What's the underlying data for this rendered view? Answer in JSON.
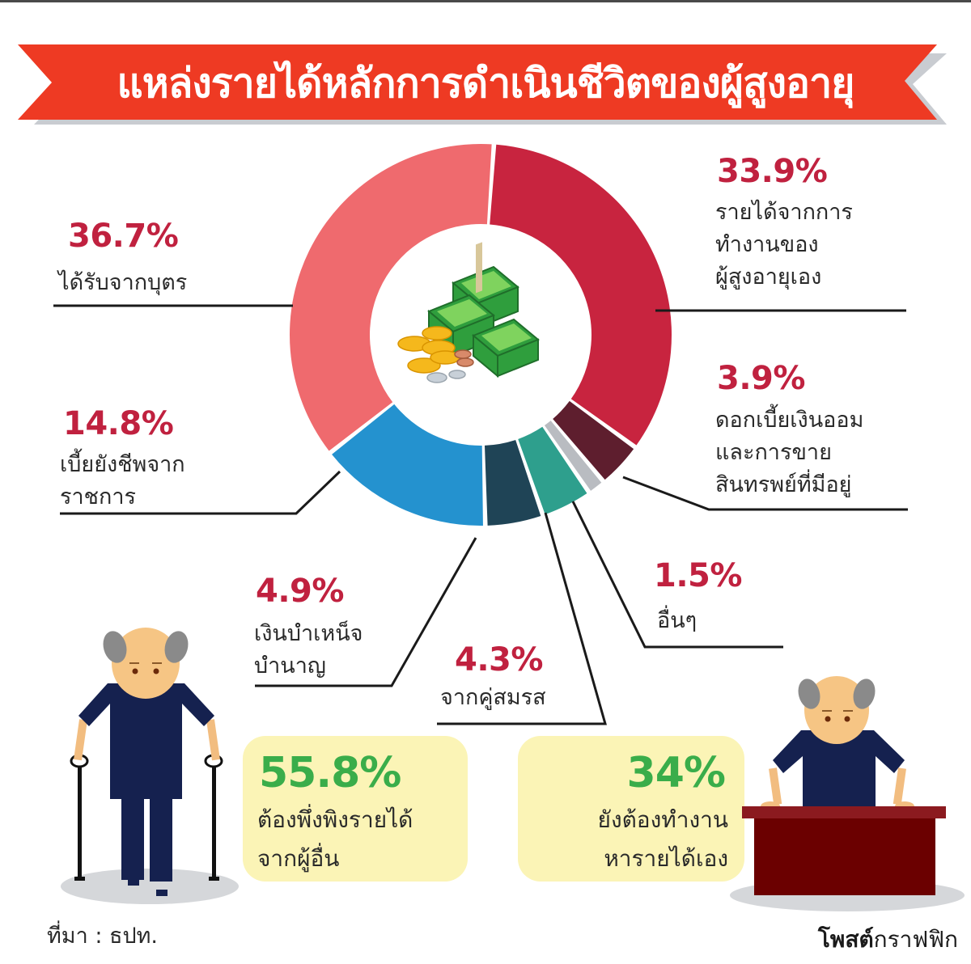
{
  "header": {
    "title": "แหล่งรายได้หลักการดำเนินชีวิตของผู้สูงอายุ"
  },
  "colors": {
    "banner_red": "#ee3a23",
    "banner_shadow": "#c9ccd1",
    "pct_red": "#c0213f",
    "callout_green": "#3aad4a",
    "callout_bg": "#fbf4b6",
    "shirt_navy": "#15214f",
    "desk_maroon": "#6b0000"
  },
  "chart_data": {
    "type": "pie",
    "variant": "donut",
    "title": "แหล่งรายได้หลักการดำเนินชีวิตของผู้สูงอายุ",
    "unit": "%",
    "legend_position": "callout labels around chart",
    "slices": [
      {
        "label": "รายได้จากการทำงานของผู้สูงอายุเอง",
        "value": 33.9,
        "color": "#c8243f"
      },
      {
        "label": "ดอกเบี้ยเงินออมและการขายสินทรพย์ที่มีอยู่",
        "value": 3.9,
        "color": "#5e1e2e"
      },
      {
        "label": "อื่นๆ",
        "value": 1.5,
        "color": "#b9bcc1"
      },
      {
        "label": "จากคู่สมรส",
        "value": 4.3,
        "color": "#2e9f8d"
      },
      {
        "label": "เงินบำเหน็จบำนาญ",
        "value": 4.9,
        "color": "#1f4456"
      },
      {
        "label": "เบี้ยยังชีพจากราชการ",
        "value": 14.8,
        "color": "#2492cf"
      },
      {
        "label": "ได้รับจากบุตร",
        "value": 36.7,
        "color": "#ef6a6e"
      }
    ],
    "summary": [
      {
        "value": 55.8,
        "label": "ต้องพึ่งพิงรายได้จากผู้อื่น"
      },
      {
        "value": 34,
        "label": "ยังต้องทำงานหารายได้เอง"
      }
    ]
  },
  "labels": {
    "work": {
      "pct": "33.9%",
      "desc": "รายได้จากการ\nทำงานของ\nผู้สูงอายุเอง"
    },
    "interest": {
      "pct": "3.9%",
      "desc": "ดอกเบี้ยเงินออม\nและการขาย\nสินทรพย์ที่มีอยู่"
    },
    "other": {
      "pct": "1.5%",
      "desc": "อื่นๆ"
    },
    "spouse": {
      "pct": "4.3%",
      "desc": "จากคู่สมรส"
    },
    "pension": {
      "pct": "4.9%",
      "desc": "เงินบำเหน็จ\nบำนาญ"
    },
    "allowance": {
      "pct": "14.8%",
      "desc": "เบี้ยยังชีพจาก\nราชการ"
    },
    "children": {
      "pct": "36.7%",
      "desc": "ได้รับจากบุตร"
    }
  },
  "callouts": {
    "dependent": {
      "pct": "55.8%",
      "desc": "ต้องพึ่งพิงรายได้\nจากผู้อื่น"
    },
    "working": {
      "pct": "34%",
      "desc": "ยังต้องทำงาน\nหารายได้เอง"
    }
  },
  "footer": {
    "source": "ที่มา : ธปท.",
    "brand_bold": "โพสต์",
    "brand_rest": "กราฟฟิก"
  }
}
